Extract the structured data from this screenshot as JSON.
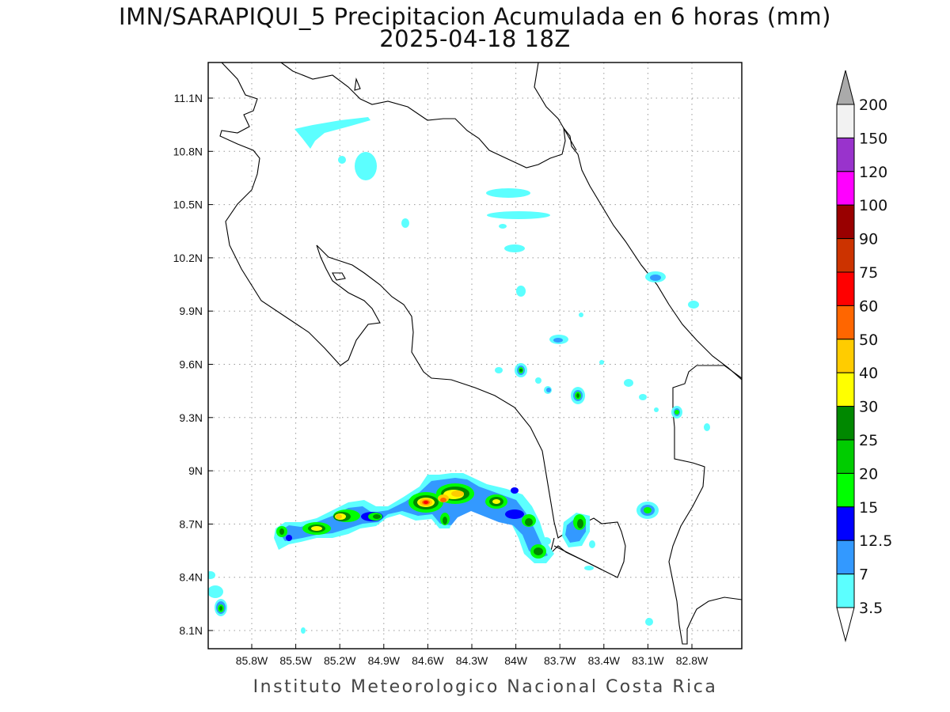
{
  "title": {
    "line1": "IMN/SARAPIQUI_5 Precipitacion Acumulada en 6 horas (mm)",
    "line2": "2025-04-18 18Z"
  },
  "footer": "Instituto Meteorologico Nacional Costa Rica",
  "axes": {
    "lon_ticks": [
      "85.8W",
      "85.5W",
      "85.2W",
      "84.9W",
      "84.6W",
      "84.3W",
      "84W",
      "83.7W",
      "83.4W",
      "83.1W",
      "82.8W"
    ],
    "lat_ticks": [
      "11.1N",
      "10.8N",
      "10.5N",
      "10.2N",
      "9.9N",
      "9.6N",
      "9.3N",
      "9N",
      "8.7N",
      "8.4N",
      "8.1N"
    ]
  },
  "colorbar": {
    "levels": [
      "3.5",
      "7",
      "12.5",
      "15",
      "20",
      "25",
      "30",
      "40",
      "50",
      "60",
      "75",
      "90",
      "100",
      "120",
      "150",
      "200"
    ],
    "colors": [
      "#ffffff",
      "#5cffff",
      "#3399ff",
      "#0000ff",
      "#00ff00",
      "#00cc00",
      "#008800",
      "#ffff00",
      "#ffcc00",
      "#ff6600",
      "#ff0000",
      "#cc3300",
      "#990000",
      "#ff00ff",
      "#9933cc",
      "#f2f2f2",
      "#aaaaaa"
    ]
  },
  "colors": {
    "coast": "#000000",
    "grid": "#999999"
  }
}
